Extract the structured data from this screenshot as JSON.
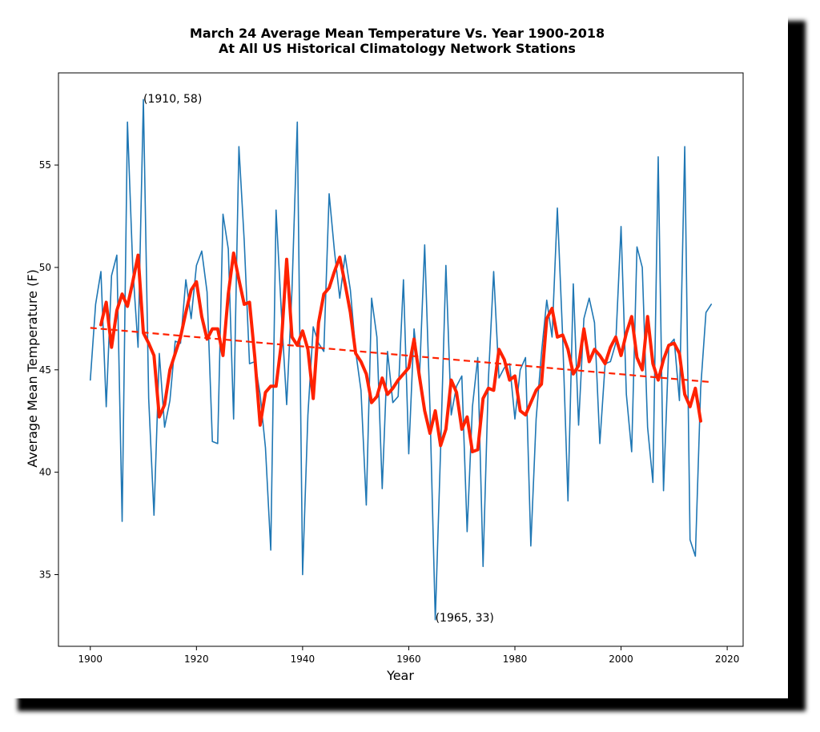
{
  "chart_data": {
    "type": "line",
    "title": "March 24 Average Mean Temperature Vs. Year 1900-2018",
    "subtitle": "At All US Historical Climatology Network Stations",
    "xlabel": "Year",
    "ylabel": "Average Mean Temperature (F)",
    "xlim": [
      1894,
      2023
    ],
    "ylim": [
      31.5,
      59.5
    ],
    "xticks": [
      1900,
      1920,
      1940,
      1960,
      1980,
      2000,
      2020
    ],
    "yticks": [
      35,
      40,
      45,
      50,
      55
    ],
    "grid": false,
    "legend": null,
    "colors": {
      "annual": "#1f77b4",
      "smoothed": "#ff2200",
      "trend": "#ff2200"
    },
    "series": [
      {
        "key": "annual",
        "style": "thin-line",
        "x": [
          1900,
          1901,
          1902,
          1903,
          1904,
          1905,
          1906,
          1907,
          1908,
          1909,
          1910,
          1911,
          1912,
          1913,
          1914,
          1915,
          1916,
          1917,
          1918,
          1919,
          1920,
          1921,
          1922,
          1923,
          1924,
          1925,
          1926,
          1927,
          1928,
          1929,
          1930,
          1931,
          1932,
          1933,
          1934,
          1935,
          1936,
          1937,
          1938,
          1939,
          1940,
          1941,
          1942,
          1943,
          1944,
          1945,
          1946,
          1947,
          1948,
          1949,
          1950,
          1951,
          1952,
          1953,
          1954,
          1955,
          1956,
          1957,
          1958,
          1959,
          1960,
          1961,
          1962,
          1963,
          1964,
          1965,
          1966,
          1967,
          1968,
          1969,
          1970,
          1971,
          1972,
          1973,
          1974,
          1975,
          1976,
          1977,
          1978,
          1979,
          1980,
          1981,
          1982,
          1983,
          1984,
          1985,
          1986,
          1987,
          1988,
          1989,
          1990,
          1991,
          1992,
          1993,
          1994,
          1995,
          1996,
          1997,
          1998,
          1999,
          2000,
          2001,
          2002,
          2003,
          2004,
          2005,
          2006,
          2007,
          2008,
          2009,
          2010,
          2011,
          2012,
          2013,
          2014,
          2015,
          2016,
          2017
        ],
        "values": [
          44.5,
          48.2,
          49.8,
          43.2,
          49.6,
          50.6,
          37.6,
          57.1,
          50.0,
          46.1,
          58.2,
          43.6,
          37.9,
          45.8,
          42.2,
          43.5,
          46.4,
          46.3,
          49.4,
          47.5,
          50.1,
          50.8,
          48.8,
          41.5,
          41.4,
          52.6,
          50.9,
          42.6,
          55.9,
          51.3,
          45.3,
          45.4,
          43.8,
          41.2,
          36.2,
          52.8,
          47.8,
          43.3,
          48.9,
          57.1,
          35.0,
          42.8,
          47.1,
          46.3,
          45.9,
          53.6,
          50.8,
          48.5,
          50.6,
          48.9,
          45.9,
          44.0,
          38.4,
          48.5,
          46.6,
          39.2,
          45.9,
          43.4,
          43.7,
          49.4,
          40.9,
          47.0,
          44.5,
          51.1,
          43.1,
          32.8,
          41.1,
          50.1,
          42.8,
          44.2,
          44.7,
          37.1,
          43.2,
          45.6,
          35.4,
          44.5,
          49.8,
          44.6,
          45.1,
          45.3,
          42.6,
          45.0,
          45.6,
          36.4,
          42.6,
          45.8,
          48.4,
          46.6,
          52.9,
          46.6,
          38.6,
          49.2,
          42.3,
          47.5,
          48.5,
          47.3,
          41.4,
          45.3,
          45.4,
          46.3,
          52.0,
          43.8,
          41.0,
          51.0,
          50.0,
          42.2,
          39.5,
          55.4,
          39.1,
          46.2,
          46.5,
          43.5,
          55.9,
          36.7,
          35.9,
          44.1,
          47.8,
          48.2
        ]
      },
      {
        "key": "smoothed",
        "style": "thick-line",
        "x": [
          1902,
          1903,
          1904,
          1905,
          1906,
          1907,
          1908,
          1909,
          1910,
          1911,
          1912,
          1913,
          1914,
          1915,
          1916,
          1917,
          1918,
          1919,
          1920,
          1921,
          1922,
          1923,
          1924,
          1925,
          1926,
          1927,
          1928,
          1929,
          1930,
          1931,
          1932,
          1933,
          1934,
          1935,
          1936,
          1937,
          1938,
          1939,
          1940,
          1941,
          1942,
          1943,
          1944,
          1945,
          1946,
          1947,
          1948,
          1949,
          1950,
          1951,
          1952,
          1953,
          1954,
          1955,
          1956,
          1957,
          1958,
          1959,
          1960,
          1961,
          1962,
          1963,
          1964,
          1965,
          1966,
          1967,
          1968,
          1969,
          1970,
          1971,
          1972,
          1973,
          1974,
          1975,
          1976,
          1977,
          1978,
          1979,
          1980,
          1981,
          1982,
          1983,
          1984,
          1985,
          1986,
          1987,
          1988,
          1989,
          1990,
          1991,
          1992,
          1993,
          1994,
          1995,
          1996,
          1997,
          1998,
          1999,
          2000,
          2001,
          2002,
          2003,
          2004,
          2005,
          2006,
          2007,
          2008,
          2009,
          2010,
          2011,
          2012,
          2013,
          2014,
          2015
        ],
        "values": [
          47.2,
          48.3,
          46.1,
          47.9,
          48.7,
          48.1,
          49.3,
          50.6,
          46.8,
          46.3,
          45.7,
          42.7,
          43.3,
          45.0,
          45.8,
          46.6,
          47.8,
          48.9,
          49.3,
          47.6,
          46.5,
          47.0,
          47.0,
          45.7,
          48.7,
          50.7,
          49.4,
          48.2,
          48.3,
          45.6,
          42.3,
          43.9,
          44.2,
          44.2,
          46.3,
          50.4,
          46.6,
          46.2,
          46.9,
          46.0,
          43.6,
          47.3,
          48.7,
          49.0,
          49.8,
          50.5,
          49.2,
          47.8,
          45.8,
          45.4,
          44.8,
          43.4,
          43.7,
          44.6,
          43.8,
          44.1,
          44.5,
          44.8,
          45.1,
          46.5,
          44.7,
          43.0,
          41.9,
          43.0,
          41.3,
          42.1,
          44.5,
          43.9,
          42.1,
          42.7,
          41.0,
          41.1,
          43.6,
          44.1,
          44.0,
          46.0,
          45.5,
          44.5,
          44.7,
          43.0,
          42.8,
          43.4,
          44.0,
          44.3,
          47.5,
          48.0,
          46.6,
          46.7,
          46.0,
          44.8,
          45.2,
          47.0,
          45.4,
          46.0,
          45.7,
          45.3,
          46.1,
          46.6,
          45.7,
          46.8,
          47.6,
          45.6,
          45.0,
          47.6,
          45.3,
          44.5,
          45.5,
          46.2,
          46.3,
          45.8,
          43.8,
          43.2,
          44.1,
          42.5
        ]
      },
      {
        "key": "trend",
        "style": "dashed-line",
        "x": [
          1900,
          2017
        ],
        "values": [
          47.05,
          44.4
        ]
      }
    ],
    "annotations": [
      {
        "text": "(1910, 58)",
        "x": 1910,
        "y": 58.2,
        "position": "above-right"
      },
      {
        "text": "(1965, 33)",
        "x": 1965,
        "y": 32.8,
        "position": "below-right"
      }
    ]
  }
}
